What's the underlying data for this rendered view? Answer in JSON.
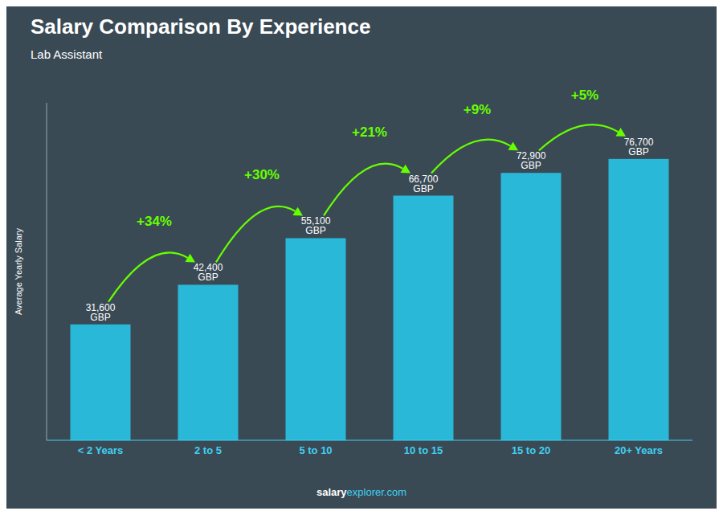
{
  "chart_data": {
    "type": "bar",
    "title": "Salary Comparison By Experience",
    "subtitle": "Lab Assistant",
    "ylabel": "Average Yearly Salary",
    "categories": [
      "< 2 Years",
      "2 to 5",
      "5 to 10",
      "10 to 15",
      "15 to 20",
      "20+ Years"
    ],
    "values": [
      31600,
      42400,
      55100,
      66700,
      72900,
      76700
    ],
    "value_labels": [
      "31,600 GBP",
      "42,400 GBP",
      "55,100 GBP",
      "66,700 GBP",
      "72,900 GBP",
      "76,700 GBP"
    ],
    "data_labels": true,
    "annotations": [
      "+34%",
      "+30%",
      "+21%",
      "+9%",
      "+5%"
    ],
    "footer": [
      "salary",
      "explorer.com"
    ],
    "color": "#29b8d8",
    "ylim": [
      0,
      92000
    ],
    "tick_labels": "x",
    "grid": false
  }
}
